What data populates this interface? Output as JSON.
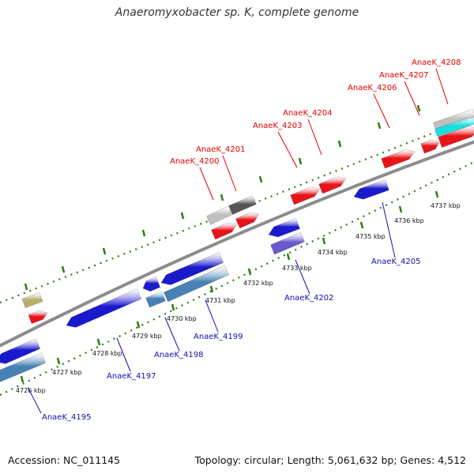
{
  "title": "Anaeromyxobacter sp. K, complete genome",
  "footer": {
    "accession": "Accession: NC_011145",
    "summary": "Topology: circular; Length: 5,061,632 bp; Genes: 4,512"
  },
  "colors": {
    "forward_gene": "#e8141a",
    "reverse_gene": "#1a1acc",
    "forward_label": "#e00000",
    "reverse_label": "#1010b0",
    "backbone": "#8c8c8c",
    "tick_green": "#2e7d12",
    "steel_blue": "#4682b4",
    "grey_light": "#c0c0c0",
    "grey_dark": "#555555",
    "cyan": "#18e0e0",
    "purple": "#6a5acd",
    "khaki": "#b8b070"
  },
  "kbp_ticks": [
    "4726 kbp",
    "4727 kbp",
    "4728 kbp",
    "4729 kbp",
    "4730 kbp",
    "4731 kbp",
    "4732 kbp",
    "4733 kbp",
    "4734 kbp",
    "4735 kbp",
    "4736 kbp",
    "4737 kbp"
  ],
  "forward_genes": [
    {
      "name": "AnaeK_4200"
    },
    {
      "name": "AnaeK_4201"
    },
    {
      "name": "AnaeK_4203"
    },
    {
      "name": "AnaeK_4204"
    },
    {
      "name": "AnaeK_4206"
    },
    {
      "name": "AnaeK_4207"
    },
    {
      "name": "AnaeK_4208"
    }
  ],
  "reverse_genes": [
    {
      "name": "AnaeK_4195"
    },
    {
      "name": "AnaeK_4197"
    },
    {
      "name": "AnaeK_4198"
    },
    {
      "name": "AnaeK_4199"
    },
    {
      "name": "AnaeK_4202"
    },
    {
      "name": "AnaeK_4205"
    }
  ]
}
